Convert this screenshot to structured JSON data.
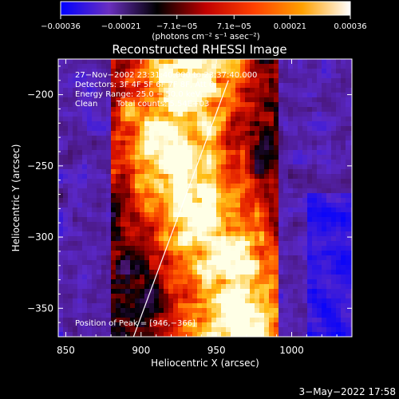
{
  "chart_data": {
    "type": "heatmap",
    "title": "Reconstructed RHESSI Image",
    "xlabel": "Heliocentric X (arcsec)",
    "ylabel": "Heliocentric Y (arcsec)",
    "xlim": [
      845,
      1040
    ],
    "ylim": [
      -370,
      -175
    ],
    "x_ticks": [
      850,
      900,
      950,
      1000
    ],
    "y_ticks": [
      -350,
      -300,
      -250,
      -200
    ],
    "x_tick_labels": [
      "850",
      "900",
      "950",
      "1000"
    ],
    "y_tick_labels": [
      "−350",
      "−300",
      "−250",
      "−200"
    ],
    "colorbar": {
      "range": [
        -0.00036,
        0.00036
      ],
      "ticks": [
        -0.00036,
        -0.00021,
        -7.1e-05,
        7.1e-05,
        0.00021,
        0.00036
      ],
      "tick_labels": [
        "−0.00036",
        "−0.00021",
        "−7.1e−05",
        "7.1e−05",
        "0.00021",
        "0.00036"
      ],
      "unit_label": "(photons cm⁻² s⁻¹ asec⁻²)",
      "colors": [
        "#0000ff",
        "#6a2fc0",
        "#000000",
        "#c00000",
        "#ff4000",
        "#ffa000",
        "#ffffff"
      ]
    },
    "annotations": {
      "time_range": "27−Nov−2002 23:31:40.000 to 23:37:40.000",
      "detectors": "Detectors: 3F 4F 5F 6F 7F 8F, Att 0",
      "energy": "Energy Range: 25.0 − 50.0 keV",
      "method": "Clean",
      "counts": "Total counts: 5.54E+03",
      "peak": "Position of Peak = [946,−366]"
    },
    "limb_line": {
      "x": [
        895,
        958
      ],
      "y": [
        -370,
        -190
      ]
    },
    "grid": false
  },
  "footer": {
    "date": "3−May−2022 17:58"
  }
}
